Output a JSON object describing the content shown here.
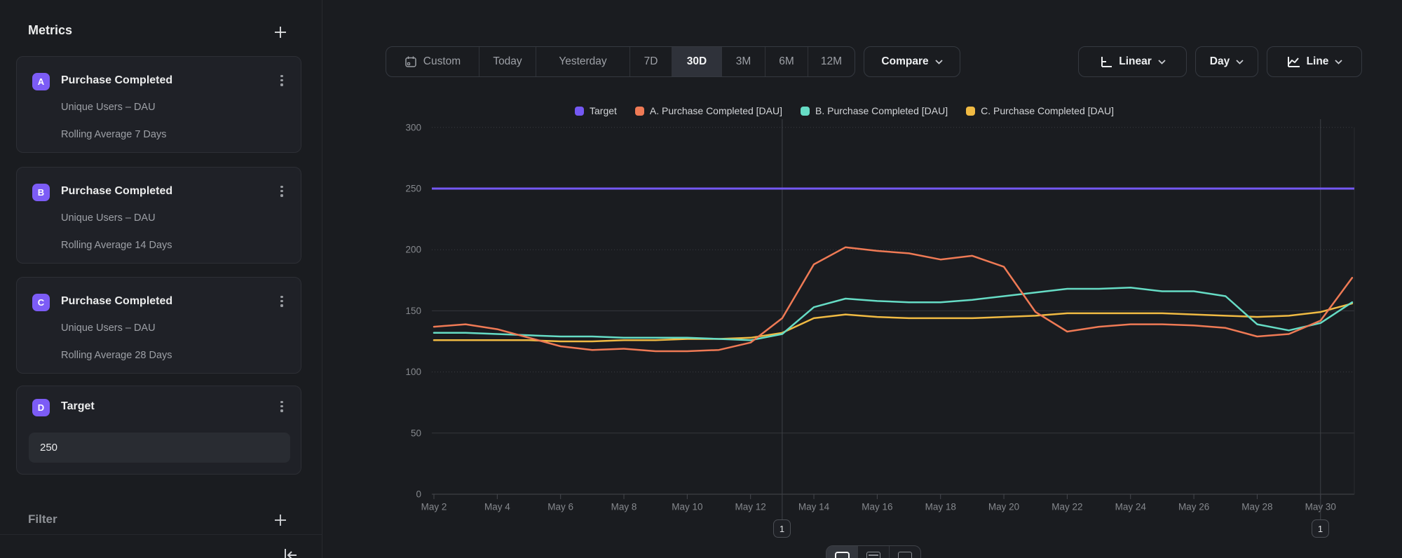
{
  "sidebar": {
    "title": "Metrics",
    "metrics": [
      {
        "badge": "A",
        "title": "Purchase Completed",
        "line1": "Unique Users – DAU",
        "line2": "Rolling Average 7 Days"
      },
      {
        "badge": "B",
        "title": "Purchase Completed",
        "line1": "Unique Users – DAU",
        "line2": "Rolling Average 14 Days"
      },
      {
        "badge": "C",
        "title": "Purchase Completed",
        "line1": "Unique Users – DAU",
        "line2": "Rolling Average 28 Days"
      }
    ],
    "target": {
      "badge": "D",
      "title": "Target",
      "value": "250"
    },
    "filter_title": "Filter"
  },
  "toolbar": {
    "ranges": [
      "Custom",
      "Today",
      "Yesterday",
      "7D",
      "30D",
      "3M",
      "6M",
      "12M"
    ],
    "selected_range": "30D",
    "compare_label": "Compare",
    "scale_label": "Linear",
    "interval_label": "Day",
    "chart_type_label": "Line"
  },
  "chart_data": {
    "type": "line",
    "x": [
      "May 2",
      "May 3",
      "May 4",
      "May 5",
      "May 6",
      "May 7",
      "May 8",
      "May 9",
      "May 10",
      "May 11",
      "May 12",
      "May 13",
      "May 14",
      "May 15",
      "May 16",
      "May 17",
      "May 18",
      "May 19",
      "May 20",
      "May 21",
      "May 22",
      "May 23",
      "May 24",
      "May 25",
      "May 26",
      "May 27",
      "May 28",
      "May 29",
      "May 30",
      "May 31"
    ],
    "x_tick_every": 2,
    "ylim": [
      0,
      300
    ],
    "yticks": [
      0,
      50,
      100,
      150,
      200,
      250,
      300
    ],
    "grid": "horizontal",
    "legend_position": "top",
    "series": [
      {
        "name": "Target",
        "color": "#7458f3",
        "type": "reference",
        "value": 250
      },
      {
        "name": "A. Purchase Completed [DAU]",
        "color": "#ef7a55",
        "values": [
          137,
          139,
          135,
          128,
          121,
          118,
          119,
          117,
          117,
          118,
          124,
          144,
          188,
          202,
          199,
          197,
          192,
          195,
          186,
          149,
          133,
          137,
          139,
          139,
          138,
          136,
          129,
          131,
          142,
          177
        ]
      },
      {
        "name": "B. Purchase Completed [DAU]",
        "color": "#66dcc5",
        "values": [
          132,
          132,
          131,
          130,
          129,
          129,
          128,
          128,
          128,
          127,
          126,
          131,
          153,
          160,
          158,
          157,
          157,
          159,
          162,
          165,
          168,
          168,
          169,
          166,
          166,
          162,
          139,
          134,
          140,
          157
        ]
      },
      {
        "name": "C. Purchase Completed [DAU]",
        "color": "#f0ba43",
        "values": [
          126,
          126,
          126,
          126,
          125,
          125,
          126,
          126,
          127,
          127,
          128,
          132,
          144,
          147,
          145,
          144,
          144,
          144,
          145,
          146,
          148,
          148,
          148,
          148,
          147,
          146,
          145,
          146,
          149,
          156
        ]
      }
    ],
    "annotations": [
      {
        "label": "1",
        "date": "May 13"
      },
      {
        "label": "1",
        "date": "May 30"
      }
    ]
  }
}
